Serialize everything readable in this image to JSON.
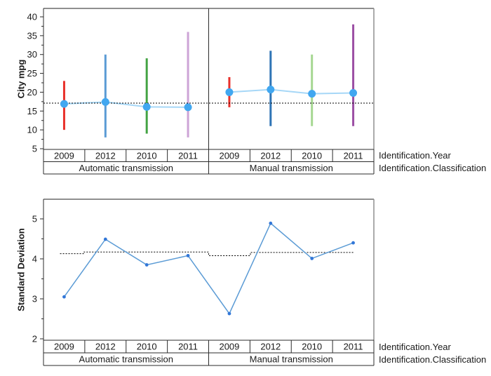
{
  "figure": {
    "background": "#ffffff",
    "frame_color": "#8f8f8f",
    "axis_color": "#2b2b2b",
    "text_color": "#1a1a1a",
    "reference_line_color": "#000000"
  },
  "chart_data": [
    {
      "type": "line",
      "id": "city-mpg-by-year-and-transmission",
      "title": "",
      "xlabel": "",
      "ylabel": "City mpg",
      "ylim": [
        5,
        42
      ],
      "yticks": [
        5,
        10,
        15,
        20,
        25,
        30,
        35,
        40
      ],
      "minor_yticks": [
        7.5,
        12.5,
        17.5,
        22.5,
        27.5,
        32.5,
        37.5
      ],
      "row_labels": {
        "year": "Identification.Year",
        "classification": "Identification.Classification"
      },
      "groups": [
        {
          "label": "Automatic transmission",
          "categories": [
            "2009",
            "2012",
            "2010",
            "2011"
          ]
        },
        {
          "label": "Manual transmission",
          "categories": [
            "2009",
            "2012",
            "2010",
            "2011"
          ]
        }
      ],
      "series": [
        {
          "name": "mean",
          "values": [
            16.9,
            17.4,
            16.1,
            16.0,
            20.0,
            20.7,
            19.6,
            19.8
          ]
        },
        {
          "name": "range_low",
          "values": [
            10,
            8,
            9,
            8,
            16,
            11,
            11,
            11
          ]
        },
        {
          "name": "range_high",
          "values": [
            23,
            30,
            29,
            36,
            24,
            31,
            30,
            38
          ]
        }
      ],
      "bar_colors": [
        "#e8302a",
        "#5b9bd5",
        "#43a343",
        "#cda4d6",
        "#e8302a",
        "#2e74b5",
        "#a6d792",
        "#9c4fa4"
      ],
      "marker_color": "#41a7f0",
      "line_color": "#a6d7f7",
      "reference_line": {
        "y": 17.1,
        "style": "dotted"
      },
      "panel_divider": true,
      "legend": "none",
      "grid": "off"
    },
    {
      "type": "line",
      "id": "standard-deviation-by-year-and-transmission",
      "title": "",
      "xlabel": "",
      "ylabel": "Standard Deviation",
      "ylim": [
        2,
        5.5
      ],
      "yticks": [
        2,
        3,
        4,
        5
      ],
      "minor_yticks": [
        2.5,
        3.5,
        4.5
      ],
      "row_labels": {
        "year": "Identification.Year",
        "classification": "Identification.Classification"
      },
      "groups": [
        {
          "label": "Automatic transmission",
          "categories": [
            "2009",
            "2012",
            "2010",
            "2011"
          ]
        },
        {
          "label": "Manual transmission",
          "categories": [
            "2009",
            "2012",
            "2010",
            "2011"
          ]
        }
      ],
      "series": [
        {
          "name": "standard_deviation",
          "values": [
            3.05,
            4.49,
            3.85,
            4.08,
            2.63,
            4.89,
            4.01,
            4.4
          ]
        }
      ],
      "marker_color": "#3277d8",
      "line_color": "#5b9bd5",
      "reference_segments": [
        {
          "x0": 0.4,
          "x1": 0.97,
          "y": 4.13
        },
        {
          "x0": 0.97,
          "x1": 4.0,
          "y": 4.17
        },
        {
          "x0": 4.0,
          "x1": 5.01,
          "y": 4.08
        },
        {
          "x0": 5.01,
          "x1": 7.52,
          "y": 4.16
        }
      ],
      "panel_divider": false,
      "legend": "none",
      "grid": "off"
    }
  ]
}
